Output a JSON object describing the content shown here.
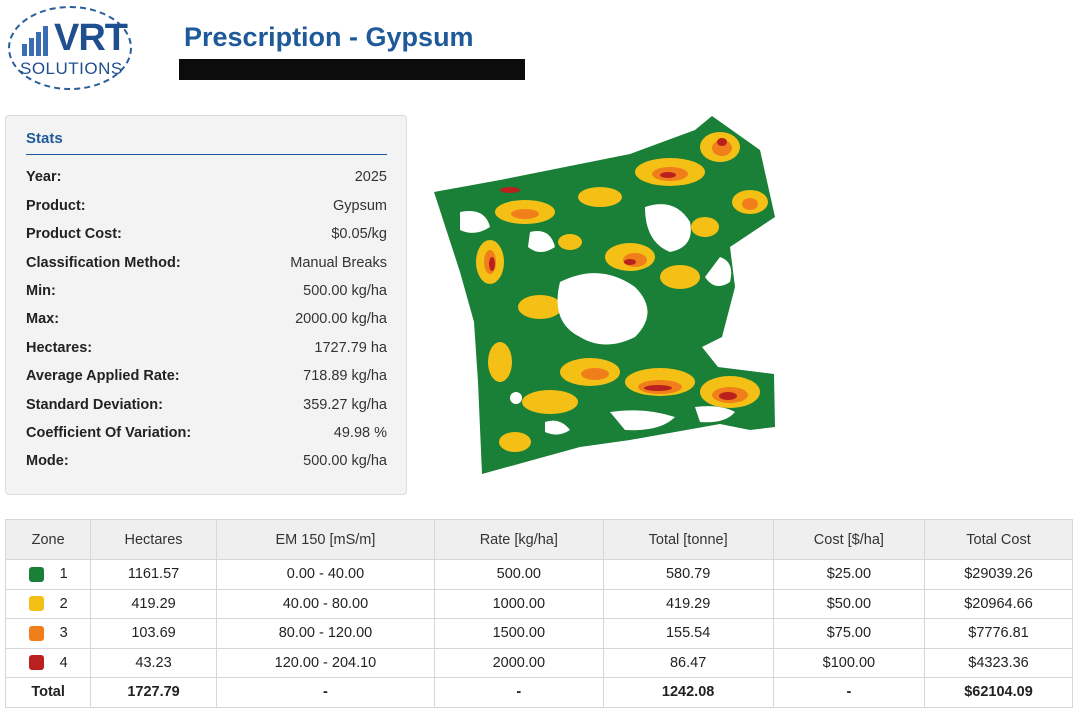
{
  "logo": {
    "main": "VRT",
    "sub": "SOLUTIONS"
  },
  "header": {
    "title": "Prescription - Gypsum"
  },
  "stats": {
    "title": "Stats",
    "rows": [
      {
        "label": "Year:",
        "value": "2025"
      },
      {
        "label": "Product:",
        "value": "Gypsum"
      },
      {
        "label": "Product Cost:",
        "value": "$0.05/kg"
      },
      {
        "label": "Classification Method:",
        "value": "Manual Breaks"
      },
      {
        "label": "Min:",
        "value": "500.00 kg/ha"
      },
      {
        "label": "Max:",
        "value": "2000.00 kg/ha"
      },
      {
        "label": "Hectares:",
        "value": "1727.79 ha"
      },
      {
        "label": "Average Applied Rate:",
        "value": "718.89 kg/ha"
      },
      {
        "label": "Standard Deviation:",
        "value": "359.27 kg/ha"
      },
      {
        "label": "Coefficient Of Variation:",
        "value": "49.98 %"
      },
      {
        "label": "Mode:",
        "value": "500.00 kg/ha"
      }
    ]
  },
  "colors": {
    "zone1": "#1a7f37",
    "zone2": "#f5c016",
    "zone3": "#f07e1b",
    "zone4": "#b8211d",
    "accent": "#1e5a99"
  },
  "table": {
    "headers": [
      "Zone",
      "Hectares",
      "EM 150 [mS/m]",
      "Rate [kg/ha]",
      "Total [tonne]",
      "Cost [$/ha]",
      "Total Cost"
    ],
    "rows": [
      {
        "zone": "1",
        "hectares": "1161.57",
        "em": "0.00 - 40.00",
        "rate": "500.00",
        "total": "580.79",
        "cost": "$25.00",
        "total_cost": "$29039.26"
      },
      {
        "zone": "2",
        "hectares": "419.29",
        "em": "40.00 - 80.00",
        "rate": "1000.00",
        "total": "419.29",
        "cost": "$50.00",
        "total_cost": "$20964.66"
      },
      {
        "zone": "3",
        "hectares": "103.69",
        "em": "80.00 - 120.00",
        "rate": "1500.00",
        "total": "155.54",
        "cost": "$75.00",
        "total_cost": "$7776.81"
      },
      {
        "zone": "4",
        "hectares": "43.23",
        "em": "120.00 - 204.10",
        "rate": "2000.00",
        "total": "86.47",
        "cost": "$100.00",
        "total_cost": "$4323.36"
      }
    ],
    "total": {
      "label": "Total",
      "hectares": "1727.79",
      "em": "-",
      "rate": "-",
      "total": "1242.08",
      "cost": "-",
      "total_cost": "$62104.09"
    }
  }
}
